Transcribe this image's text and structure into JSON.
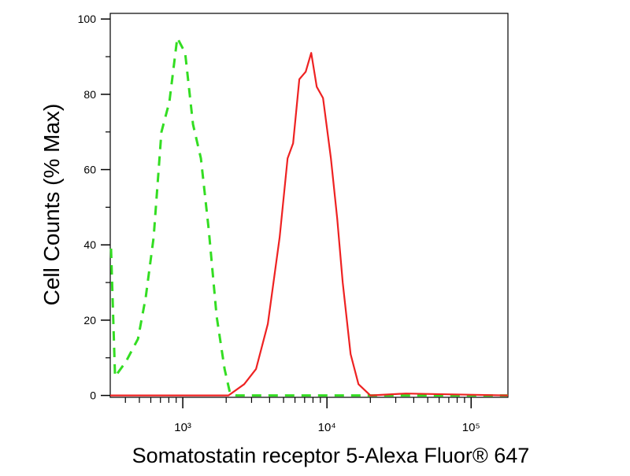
{
  "chart_data": {
    "type": "line",
    "xlabel": "Somatostatin receptor 5-Alexa Fluor® 647",
    "ylabel": "Cell Counts (% Max)",
    "xscale": "log",
    "xlim": [
      314,
      180000
    ],
    "ylim": [
      -0.5,
      101.5
    ],
    "xticks": [
      {
        "value": 1000,
        "label": "10³"
      },
      {
        "value": 10000,
        "label": "10⁴"
      },
      {
        "value": 100000,
        "label": "10⁵"
      }
    ],
    "xminorticks": [
      400,
      500,
      600,
      700,
      800,
      900,
      2000,
      3000,
      4000,
      5000,
      6000,
      7000,
      8000,
      9000,
      20000,
      30000,
      40000,
      50000,
      60000,
      70000,
      80000,
      90000
    ],
    "yticks": [
      0,
      20,
      40,
      60,
      80,
      100
    ],
    "yminorticks": [
      10,
      30,
      50,
      70,
      90
    ],
    "series": [
      {
        "color": "#33dd22",
        "dashed": true,
        "x": [
          318,
          339,
          404,
          489,
          553,
          628,
          711,
          807,
          916,
          1038,
          1178,
          1336,
          1514,
          1718,
          1950,
          2128,
          2355,
          8280,
          29100,
          180000
        ],
        "values": [
          39,
          5,
          9,
          15,
          26,
          42,
          70,
          78,
          95,
          91,
          72,
          63,
          44,
          21,
          7,
          0.6,
          0,
          0,
          0,
          0
        ]
      },
      {
        "color": "#ee2222",
        "dashed": false,
        "x": [
          314,
          2075,
          2668,
          3221,
          3890,
          4697,
          5330,
          5822,
          6436,
          7118,
          7775,
          8492,
          9390,
          10650,
          11780,
          12860,
          14590,
          16550,
          20000,
          35200,
          180000
        ],
        "values": [
          0,
          0,
          3,
          7,
          19,
          42,
          63,
          67,
          84,
          86,
          91,
          82,
          79,
          63,
          47,
          30,
          11,
          3,
          0,
          0.5,
          0
        ]
      }
    ]
  }
}
